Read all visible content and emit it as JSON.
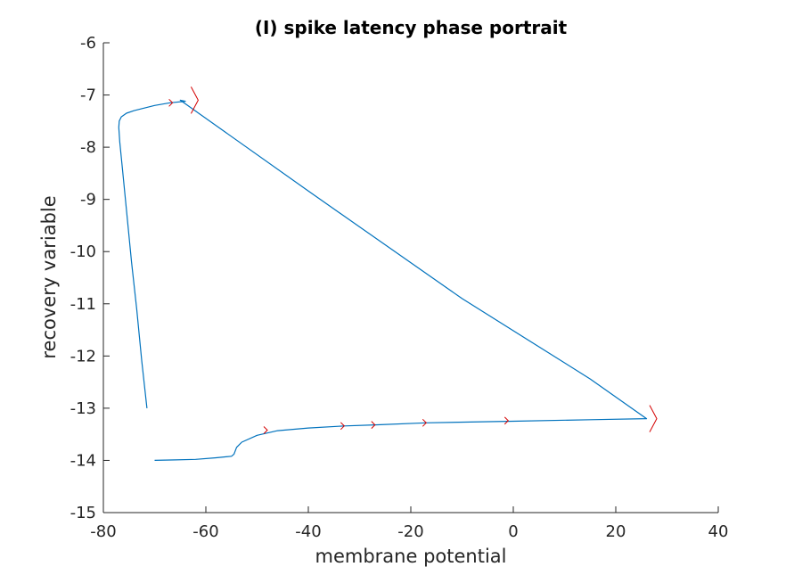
{
  "chart_data": {
    "type": "line",
    "title": "(I) spike latency phase portrait",
    "xlabel": "membrane potential",
    "ylabel": "recovery variable",
    "xlim": [
      -80,
      40
    ],
    "ylim": [
      -15,
      -6
    ],
    "xticks": [
      -80,
      -60,
      -40,
      -20,
      0,
      20,
      40
    ],
    "yticks": [
      -15,
      -14,
      -13,
      -12,
      -11,
      -10,
      -9,
      -8,
      -7,
      -6
    ],
    "grid": false,
    "colors": {
      "trajectory": "#0072BD",
      "arrow": "#D40000",
      "axis": "#262626"
    },
    "series": [
      {
        "x": [
          -71.5,
          -72.5,
          -73.5,
          -74.5,
          -75.5,
          -76.3,
          -76.8,
          -77.0,
          -76.9,
          -76.5,
          -75.5,
          -74.0,
          -72.0,
          -70.0,
          -67.0,
          -64.0,
          -65.0,
          -40.0,
          -10.0,
          15.0,
          26.0,
          15.0,
          0.0,
          -17.0,
          -27.0,
          -33.0,
          -40.0,
          -46.0,
          -50.0,
          -53.0,
          -54.0,
          -54.5,
          -55.0,
          -58.0,
          -62.0,
          -66.0,
          -70.0
        ],
        "y": [
          -13.0,
          -12.1,
          -11.1,
          -10.2,
          -9.2,
          -8.4,
          -7.9,
          -7.62,
          -7.5,
          -7.42,
          -7.35,
          -7.3,
          -7.25,
          -7.2,
          -7.15,
          -7.12,
          -7.1,
          -8.84,
          -10.9,
          -12.44,
          -13.2,
          -13.22,
          -13.25,
          -13.28,
          -13.32,
          -13.34,
          -13.38,
          -13.43,
          -13.52,
          -13.65,
          -13.75,
          -13.88,
          -13.92,
          -13.95,
          -13.98,
          -13.99,
          -14.0
        ]
      }
    ],
    "arrows": [
      {
        "x": -48.0,
        "y": -13.42
      },
      {
        "x": -33.0,
        "y": -13.34
      },
      {
        "x": -27.0,
        "y": -13.32
      },
      {
        "x": -17.0,
        "y": -13.28
      },
      {
        "x": -1.0,
        "y": -13.24
      },
      {
        "x": 28.0,
        "y": -13.2
      },
      {
        "x": -61.5,
        "y": -7.1
      },
      {
        "x": -66.5,
        "y": -7.15
      }
    ]
  }
}
